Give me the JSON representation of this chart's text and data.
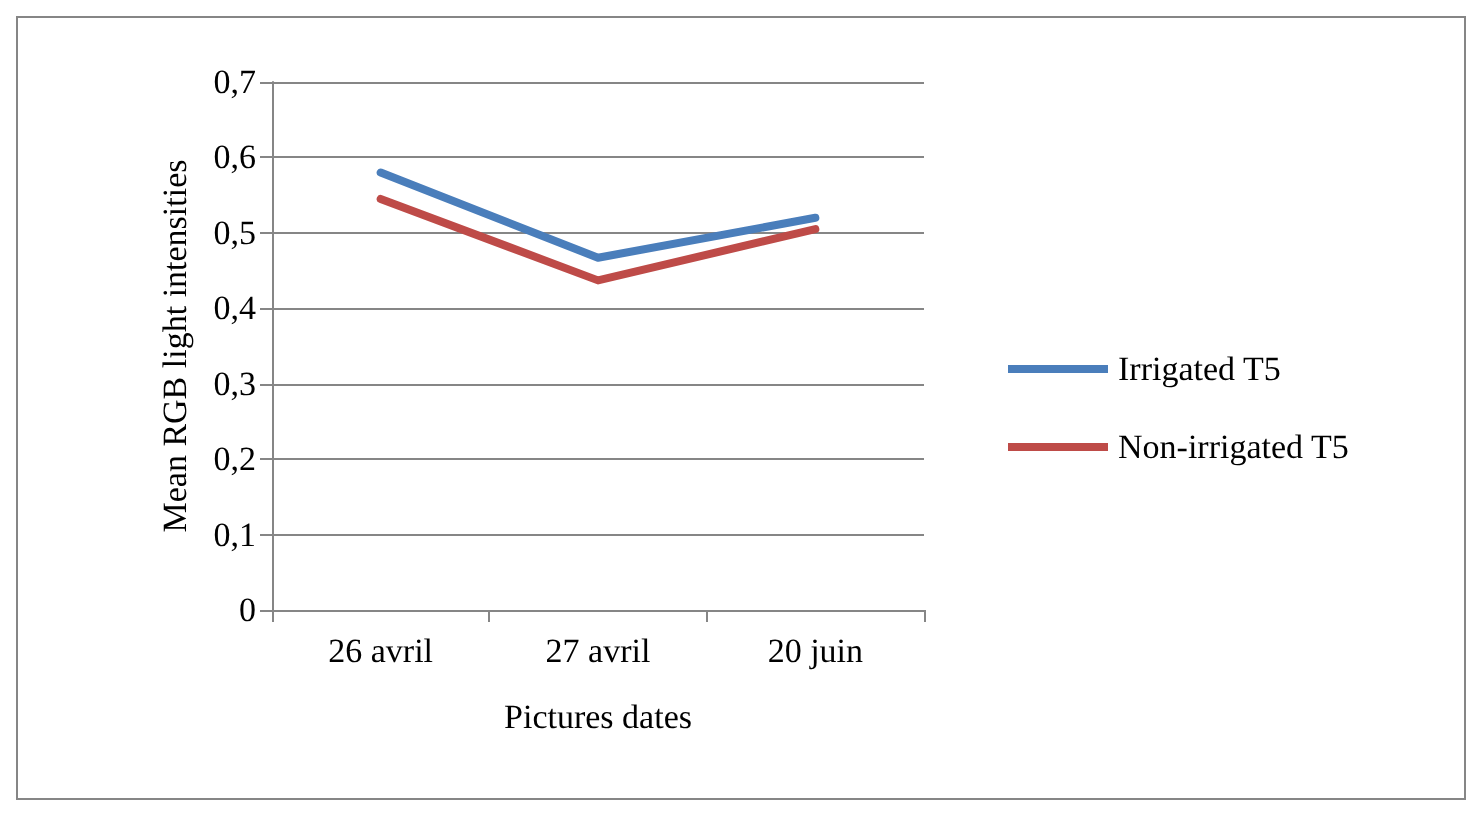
{
  "chart_data": {
    "type": "line",
    "xlabel": "Pictures dates",
    "ylabel": "Mean RGB light intensities",
    "categories": [
      "26 avril",
      "27 avril",
      "20 juin"
    ],
    "series": [
      {
        "name": "Irrigated T5",
        "color": "#4a7ebb",
        "values": [
          0.58,
          0.467,
          0.52
        ]
      },
      {
        "name": "Non-irrigated T5",
        "color": "#be4b48",
        "values": [
          0.545,
          0.437,
          0.505
        ]
      }
    ],
    "ylim": [
      0,
      0.7
    ],
    "yticks": [
      0,
      {
        "value": 0.1,
        "label": "0,1"
      },
      {
        "value": 0.2,
        "label": "0,2"
      },
      {
        "value": 0.3,
        "label": "0,3"
      },
      {
        "value": 0.4,
        "label": "0,4"
      },
      {
        "value": 0.5,
        "label": "0,5"
      },
      {
        "value": 0.6,
        "label": "0,6"
      },
      {
        "value": 0.7,
        "label": "0,7"
      }
    ],
    "grid": "y",
    "legend": "right",
    "marker": "none",
    "line_style": "solid"
  }
}
